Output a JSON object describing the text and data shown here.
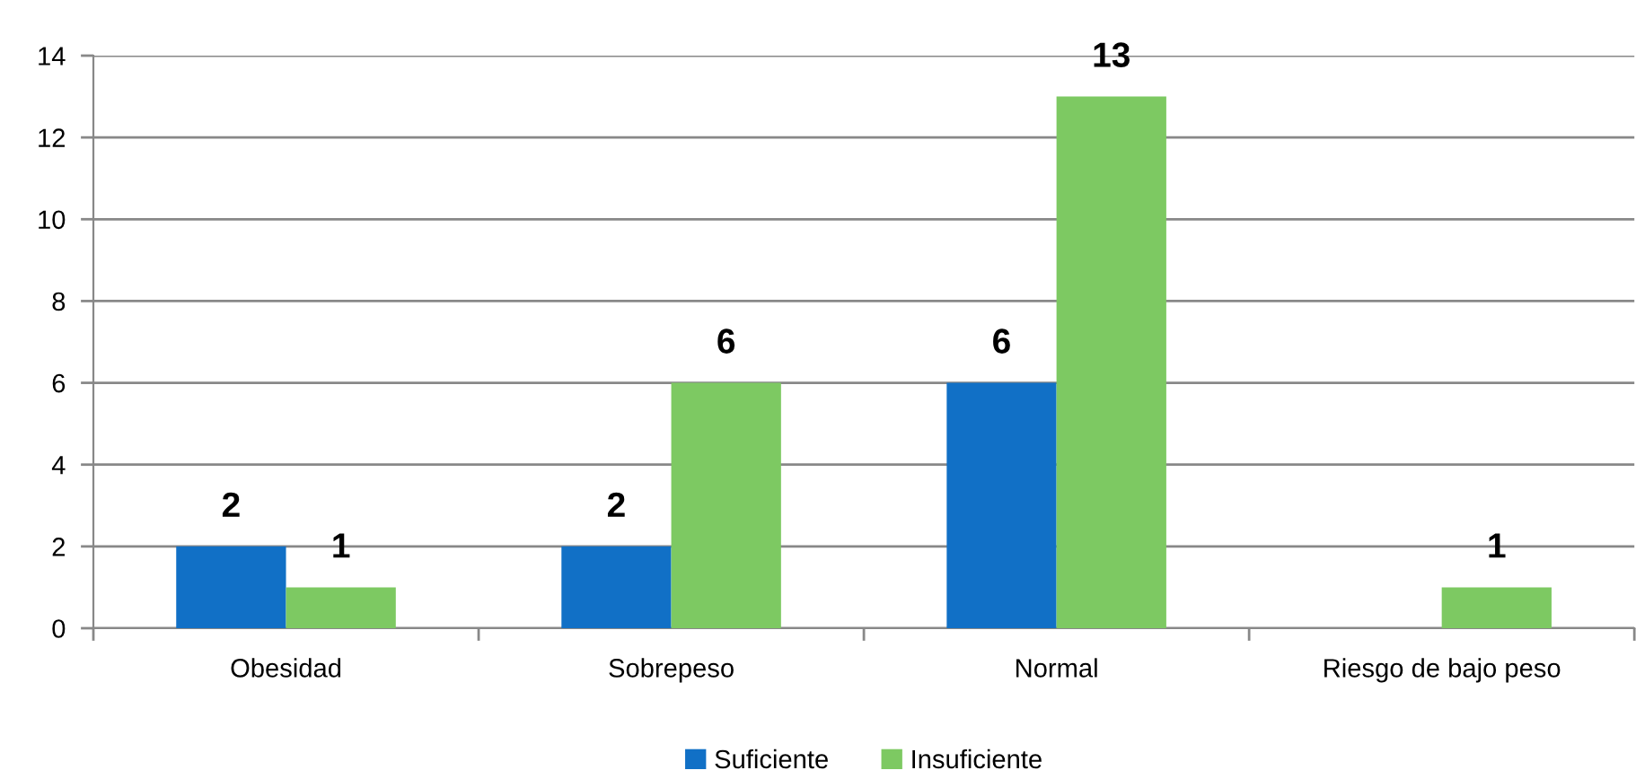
{
  "chart_data": {
    "type": "bar",
    "categories": [
      "Obesidad",
      "Sobrepeso",
      "Normal",
      "Riesgo de bajo peso"
    ],
    "series": [
      {
        "name": "Suficiente",
        "color": "#1170c6",
        "values": [
          2,
          2,
          6,
          0
        ],
        "value_labels": [
          "2",
          "2",
          "6",
          null
        ]
      },
      {
        "name": "Insuficiente",
        "color": "#7dc962",
        "values": [
          1,
          6,
          13,
          1
        ],
        "value_labels": [
          "1",
          "6",
          "13",
          "1"
        ]
      }
    ],
    "ylim": [
      0,
      14
    ],
    "yticks": [
      0,
      2,
      4,
      6,
      8,
      10,
      12,
      14
    ],
    "grid": "y",
    "legend": "bottom"
  }
}
